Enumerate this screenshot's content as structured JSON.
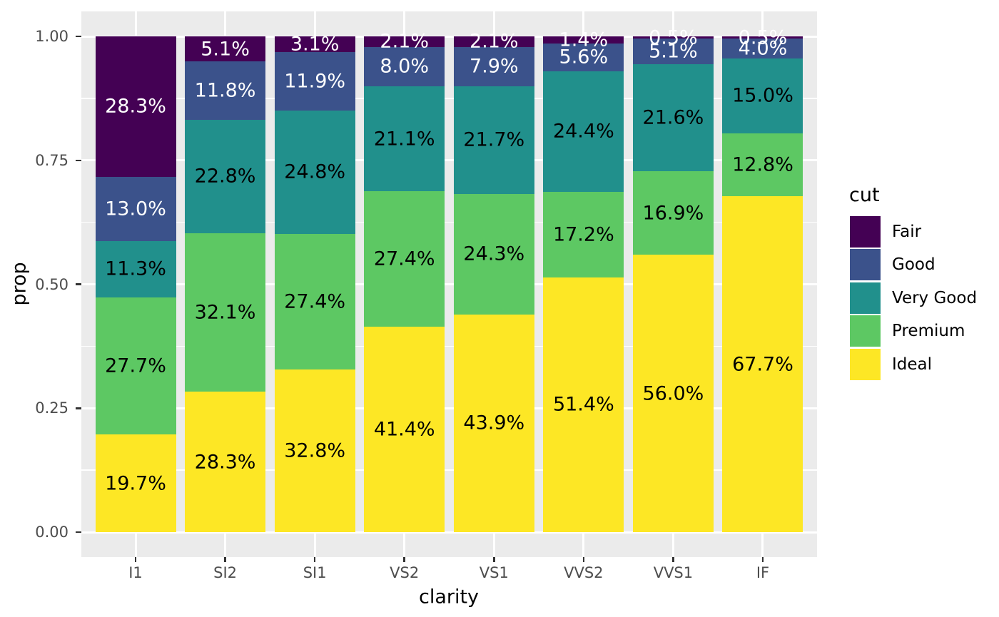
{
  "chart_data": {
    "type": "bar",
    "stacked": true,
    "normalized": true,
    "xlabel": "clarity",
    "ylabel": "prop",
    "legend_title": "cut",
    "legend_position": "right",
    "categories": [
      "I1",
      "SI2",
      "SI1",
      "VS2",
      "VS1",
      "VVS2",
      "VVS1",
      "IF"
    ],
    "series": [
      {
        "name": "Fair",
        "color": "#440154",
        "label_color": "#FFFFFF",
        "values": [
          28.3,
          5.1,
          3.1,
          2.1,
          2.1,
          1.4,
          0.5,
          0.5
        ]
      },
      {
        "name": "Good",
        "color": "#3B528B",
        "label_color": "#FFFFFF",
        "values": [
          13.0,
          11.8,
          11.9,
          8.0,
          7.9,
          5.6,
          5.1,
          4.0
        ]
      },
      {
        "name": "Very Good",
        "color": "#21908C",
        "label_color": "#000000",
        "values": [
          11.3,
          22.8,
          24.8,
          21.1,
          21.7,
          24.4,
          21.6,
          15.0
        ]
      },
      {
        "name": "Premium",
        "color": "#5DC863",
        "label_color": "#000000",
        "values": [
          27.7,
          32.1,
          27.4,
          27.4,
          24.3,
          17.2,
          16.9,
          12.8
        ]
      },
      {
        "name": "Ideal",
        "color": "#FDE725",
        "label_color": "#000000",
        "values": [
          19.7,
          28.3,
          32.8,
          41.4,
          43.9,
          51.4,
          56.0,
          67.7
        ]
      }
    ],
    "label_suffix": "%",
    "y_ticks": [
      {
        "label": "1.00",
        "value": 1.0
      },
      {
        "label": "0.75",
        "value": 0.75
      },
      {
        "label": "0.50",
        "value": 0.5
      },
      {
        "label": "0.25",
        "value": 0.25
      },
      {
        "label": "0.00",
        "value": 0.0
      }
    ],
    "y_minor": [
      0.125,
      0.375,
      0.625,
      0.875
    ],
    "ylim": [
      -0.05,
      1.05
    ],
    "grid": true,
    "panel_background": "#EBEBEB",
    "gridline_color": "#FFFFFF",
    "tick_text_color": "#4D4D4D",
    "tick_mark_color": "#333333"
  }
}
